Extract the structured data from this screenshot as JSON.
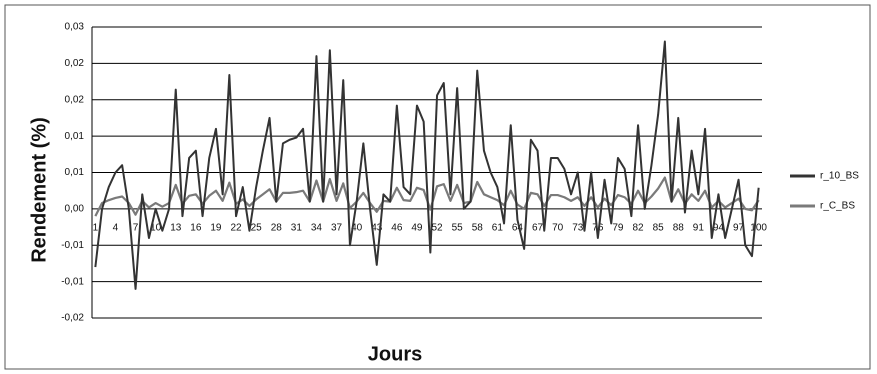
{
  "chart_data": {
    "type": "line",
    "y_label": "Rendement (%)",
    "x_label": "Jours",
    "categories": [
      1,
      null,
      null,
      4,
      null,
      null,
      7,
      null,
      null,
      10,
      null,
      null,
      13,
      null,
      null,
      16,
      null,
      null,
      19,
      null,
      null,
      22,
      null,
      null,
      25,
      null,
      null,
      28,
      null,
      null,
      31,
      null,
      null,
      34,
      null,
      null,
      37,
      null,
      null,
      40,
      null,
      null,
      43,
      null,
      null,
      46,
      null,
      null,
      49,
      null,
      null,
      52,
      null,
      null,
      55,
      null,
      null,
      58,
      null,
      null,
      61,
      null,
      null,
      64,
      null,
      null,
      67,
      null,
      null,
      70,
      null,
      null,
      73,
      null,
      null,
      76,
      null,
      null,
      79,
      null,
      null,
      82,
      null,
      null,
      85,
      null,
      null,
      88,
      null,
      null,
      91,
      null,
      null,
      94,
      null,
      null,
      97,
      null,
      null,
      100
    ],
    "series": [
      {
        "name": "r_10_BS",
        "color": "#333333",
        "values": [
          -0.008,
          0.0,
          0.003,
          0.005,
          0.006,
          0.0,
          -0.011,
          0.002,
          -0.004,
          0.0,
          -0.003,
          0.0,
          0.0164,
          -0.001,
          0.007,
          0.008,
          -0.001,
          0.007,
          0.011,
          0.002,
          0.0184,
          -0.001,
          0.003,
          -0.003,
          0.003,
          0.008,
          0.0125,
          0.001,
          0.009,
          0.0095,
          0.0098,
          0.011,
          0.001,
          0.021,
          0.001,
          0.0218,
          0.002,
          0.0177,
          -0.005,
          0.001,
          0.009,
          0.0,
          -0.0077,
          0.002,
          0.001,
          0.0142,
          0.003,
          0.002,
          0.0142,
          0.012,
          -0.006,
          0.0156,
          0.0173,
          0.002,
          0.0166,
          0.0,
          0.001,
          0.019,
          0.008,
          0.005,
          0.003,
          -0.002,
          0.0115,
          -0.0015,
          -0.0055,
          0.0095,
          0.008,
          -0.003,
          0.007,
          0.007,
          0.0055,
          0.002,
          0.005,
          -0.003,
          0.005,
          -0.004,
          0.004,
          -0.002,
          0.007,
          0.0055,
          -0.001,
          0.0115,
          0.0,
          0.006,
          0.013,
          0.023,
          0.001,
          0.0125,
          -0.0005,
          0.008,
          0.002,
          0.011,
          -0.004,
          0.002,
          -0.004,
          0.0,
          0.004,
          -0.005,
          -0.0065,
          0.0029
        ]
      },
      {
        "name": "r_C_BS",
        "color": "#7a7a7a",
        "values": [
          -0.001,
          0.0008,
          0.0012,
          0.0015,
          0.0017,
          0.0008,
          -0.0008,
          0.0011,
          0.0002,
          0.0008,
          0.0003,
          0.0008,
          0.0033,
          0.0007,
          0.0018,
          0.002,
          0.0007,
          0.0018,
          0.0025,
          0.0011,
          0.0036,
          0.0007,
          0.0013,
          0.0004,
          0.0013,
          0.002,
          0.0027,
          0.001,
          0.0022,
          0.0022,
          0.0023,
          0.0025,
          0.001,
          0.0039,
          0.001,
          0.0041,
          0.0011,
          0.0035,
          0.0001,
          0.001,
          0.0022,
          0.0008,
          -0.0004,
          0.0011,
          0.001,
          0.0029,
          0.0012,
          0.0011,
          0.0029,
          0.0026,
          -0.0001,
          0.0031,
          0.0034,
          0.0011,
          0.0033,
          0.0008,
          0.001,
          0.0037,
          0.002,
          0.0016,
          0.0012,
          0.0005,
          0.0025,
          0.0006,
          0.0,
          0.0022,
          0.002,
          0.0004,
          0.0019,
          0.0019,
          0.0016,
          0.0011,
          0.0016,
          0.0004,
          0.0016,
          0.0002,
          0.0014,
          0.0005,
          0.0019,
          0.0016,
          0.0007,
          0.0025,
          0.0008,
          0.0017,
          0.0028,
          0.0043,
          0.001,
          0.0027,
          0.0007,
          0.002,
          0.0011,
          0.0025,
          0.0002,
          0.0011,
          0.0002,
          0.0008,
          0.0014,
          0.0,
          -0.0002,
          0.0012
        ]
      }
    ],
    "ylim": [
      -0.015,
      0.025
    ],
    "yticks": [
      {
        "value": -0.015,
        "label": "-0,02"
      },
      {
        "value": -0.01,
        "label": "-0,01"
      },
      {
        "value": -0.005,
        "label": "-0,01"
      },
      {
        "value": 0,
        "label": "0,00"
      },
      {
        "value": 0.005,
        "label": "0,01"
      },
      {
        "value": 0.01,
        "label": "0,01"
      },
      {
        "value": 0.015,
        "label": "0,02"
      },
      {
        "value": 0.02,
        "label": "0,02"
      },
      {
        "value": 0.025,
        "label": "0,03"
      }
    ],
    "grid": true,
    "legend": "right"
  }
}
